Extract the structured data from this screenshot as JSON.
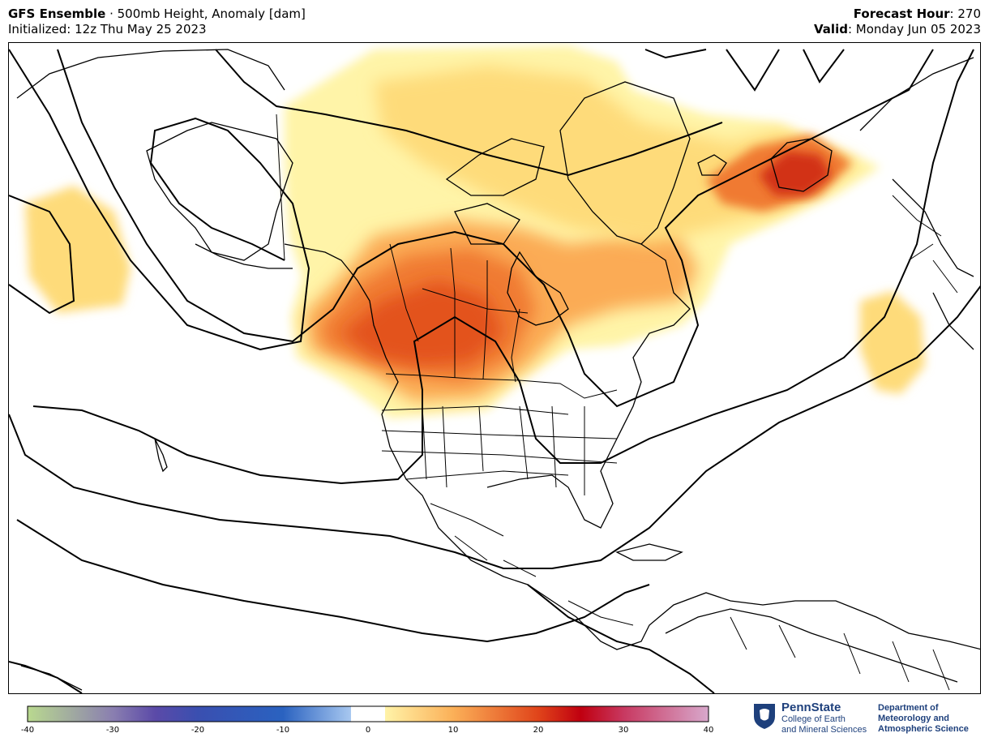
{
  "header": {
    "model": "GFS Ensemble",
    "separator": " · ",
    "field": "500mb Height, Anomaly [dam]",
    "initialized": "Initialized: 12z Thu May 25 2023",
    "forecast_hour_label": "Forecast Hour",
    "forecast_hour_value": ": 270",
    "valid_label": "Valid",
    "valid_value": ": Monday Jun 05 2023"
  },
  "colorbar": {
    "ticks": [
      "-40",
      "-30",
      "-20",
      "-10",
      "0",
      "10",
      "20",
      "30",
      "40"
    ],
    "stops": [
      {
        "v": -40,
        "c": "#b9d98f"
      },
      {
        "v": -30,
        "c": "#8a7fb0"
      },
      {
        "v": -25,
        "c": "#5b4aa8"
      },
      {
        "v": -20,
        "c": "#3a4fb0"
      },
      {
        "v": -10,
        "c": "#2a62c0"
      },
      {
        "v": -2,
        "c": "#a8c8f0"
      },
      {
        "v": -2,
        "c": "#ffffff"
      },
      {
        "v": 2,
        "c": "#ffffff"
      },
      {
        "v": 2,
        "c": "#fff3a8"
      },
      {
        "v": 10,
        "c": "#fbb058"
      },
      {
        "v": 20,
        "c": "#e0441a"
      },
      {
        "v": 25,
        "c": "#c00010"
      },
      {
        "v": 30,
        "c": "#c83860"
      },
      {
        "v": 40,
        "c": "#d8a8cc"
      }
    ]
  },
  "logos": {
    "pennstate_name": "PennState",
    "pennstate_line1": "College of Earth",
    "pennstate_line2": "and Mineral Sciences",
    "dept_line1": "Department of",
    "dept_line2": "Meteorology and",
    "dept_line3": "Atmospheric Science"
  },
  "anomaly_colors": {
    "light": "#fff4a8",
    "yellow": "#fedb7a",
    "orange": "#fbab55",
    "dark_orange": "#f07a30",
    "red_orange": "#e3531f",
    "red": "#d23214"
  }
}
